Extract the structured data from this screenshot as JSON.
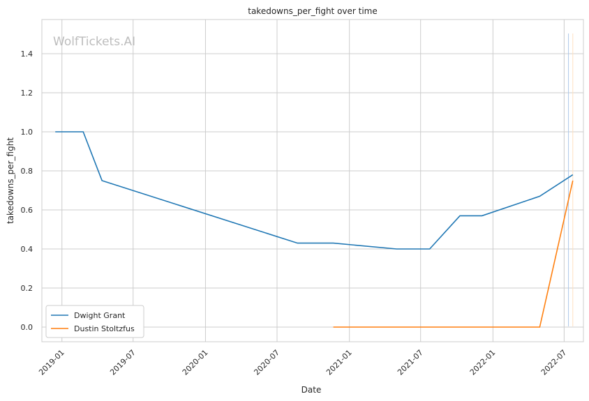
{
  "chart_data": {
    "type": "line",
    "title": "takedowns_per_fight over time",
    "xlabel": "Date",
    "ylabel": "takedowns_per_fight",
    "watermark": "WolfTickets.AI",
    "xlim": [
      "2018-11-11",
      "2022-08-19"
    ],
    "ylim": [
      -0.075,
      1.575
    ],
    "x_ticks": [
      "2019-01",
      "2019-07",
      "2020-01",
      "2020-07",
      "2021-01",
      "2021-07",
      "2022-01",
      "2022-07"
    ],
    "y_ticks": [
      "0.0",
      "0.2",
      "0.4",
      "0.6",
      "0.8",
      "1.0",
      "1.2",
      "1.4"
    ],
    "grid": true,
    "legend_position": "lower-left",
    "series": [
      {
        "name": "Dwight Grant",
        "color": "#1f77b4",
        "points": [
          {
            "x": "2018-12-15",
            "y": 1.0
          },
          {
            "x": "2019-02-24",
            "y": 1.0
          },
          {
            "x": "2019-04-13",
            "y": 0.75
          },
          {
            "x": "2020-08-22",
            "y": 0.43
          },
          {
            "x": "2020-11-21",
            "y": 0.43
          },
          {
            "x": "2021-05-01",
            "y": 0.4
          },
          {
            "x": "2021-07-24",
            "y": 0.4
          },
          {
            "x": "2021-10-09",
            "y": 0.57
          },
          {
            "x": "2021-12-04",
            "y": 0.57
          },
          {
            "x": "2022-04-30",
            "y": 0.67
          },
          {
            "x": "2022-07-23",
            "y": 0.78
          }
        ]
      },
      {
        "name": "Dustin Stoltzfus",
        "color": "#ff7f0e",
        "points": [
          {
            "x": "2020-11-21",
            "y": 0.0
          },
          {
            "x": "2022-04-30",
            "y": 0.0
          },
          {
            "x": "2022-07-23",
            "y": 0.75
          }
        ]
      }
    ],
    "markers": [
      {
        "x": "2022-07-12",
        "color": "#aec7e8"
      },
      {
        "x": "2022-07-23",
        "color": "#ffe0c0"
      }
    ]
  }
}
